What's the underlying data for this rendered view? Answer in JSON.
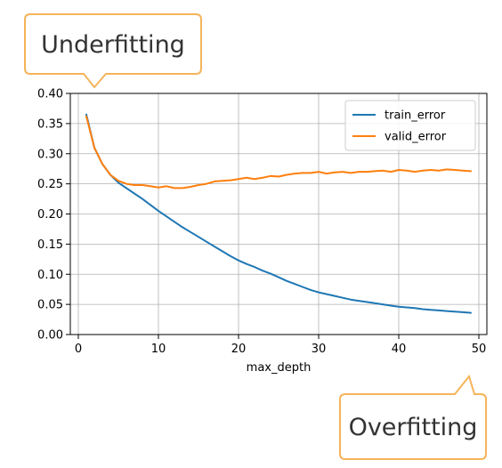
{
  "chart_data": {
    "type": "line",
    "xlabel": "max_depth",
    "ylabel": "",
    "xlim": [
      -1,
      51
    ],
    "ylim": [
      0.0,
      0.4
    ],
    "x_ticks": [
      0,
      10,
      20,
      30,
      40,
      50
    ],
    "y_ticks": [
      0.0,
      0.05,
      0.1,
      0.15,
      0.2,
      0.25,
      0.3,
      0.35,
      0.4
    ],
    "x_tick_labels": [
      "0",
      "10",
      "20",
      "30",
      "40",
      "50"
    ],
    "y_tick_labels": [
      "0.00",
      "0.05",
      "0.10",
      "0.15",
      "0.20",
      "0.25",
      "0.30",
      "0.35",
      "0.40"
    ],
    "grid": true,
    "legend_position": "top-right",
    "series": [
      {
        "name": "train_error",
        "color": "#1f77b4",
        "x": [
          1,
          2,
          3,
          4,
          5,
          6,
          7,
          8,
          9,
          10,
          11,
          12,
          13,
          14,
          15,
          16,
          17,
          18,
          19,
          20,
          21,
          22,
          23,
          24,
          25,
          26,
          27,
          28,
          29,
          30,
          31,
          32,
          33,
          34,
          35,
          36,
          37,
          38,
          39,
          40,
          41,
          42,
          43,
          44,
          45,
          46,
          47,
          48,
          49
        ],
        "values": [
          0.365,
          0.31,
          0.283,
          0.265,
          0.252,
          0.243,
          0.234,
          0.225,
          0.215,
          0.205,
          0.196,
          0.187,
          0.178,
          0.17,
          0.162,
          0.154,
          0.146,
          0.138,
          0.13,
          0.123,
          0.117,
          0.112,
          0.106,
          0.101,
          0.095,
          0.089,
          0.084,
          0.079,
          0.074,
          0.07,
          0.067,
          0.064,
          0.061,
          0.058,
          0.056,
          0.054,
          0.052,
          0.05,
          0.048,
          0.046,
          0.045,
          0.044,
          0.042,
          0.041,
          0.04,
          0.039,
          0.038,
          0.037,
          0.036
        ]
      },
      {
        "name": "valid_error",
        "color": "#ff7f0e",
        "x": [
          1,
          2,
          3,
          4,
          5,
          6,
          7,
          8,
          9,
          10,
          11,
          12,
          13,
          14,
          15,
          16,
          17,
          18,
          19,
          20,
          21,
          22,
          23,
          24,
          25,
          26,
          27,
          28,
          29,
          30,
          31,
          32,
          33,
          34,
          35,
          36,
          37,
          38,
          39,
          40,
          41,
          42,
          43,
          44,
          45,
          46,
          47,
          48,
          49
        ],
        "values": [
          0.362,
          0.31,
          0.283,
          0.265,
          0.255,
          0.25,
          0.248,
          0.248,
          0.246,
          0.244,
          0.246,
          0.243,
          0.243,
          0.245,
          0.248,
          0.25,
          0.254,
          0.255,
          0.256,
          0.258,
          0.26,
          0.258,
          0.26,
          0.263,
          0.262,
          0.265,
          0.267,
          0.268,
          0.268,
          0.27,
          0.267,
          0.269,
          0.27,
          0.268,
          0.27,
          0.27,
          0.271,
          0.272,
          0.27,
          0.273,
          0.272,
          0.27,
          0.272,
          0.273,
          0.272,
          0.274,
          0.273,
          0.272,
          0.271
        ]
      }
    ]
  },
  "callouts": {
    "underfitting": "Underfitting",
    "overfitting": "Overfitting"
  },
  "colors": {
    "callout_border": "#f5b45a",
    "callout_fill": "#ffffff"
  }
}
